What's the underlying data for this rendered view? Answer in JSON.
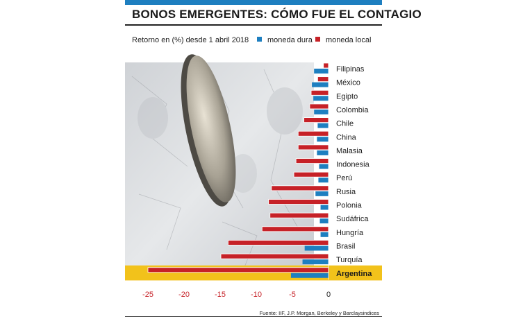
{
  "header": {
    "title": "BONOS EMERGENTES: CÓMO FUE EL CONTAGIO",
    "subtitle": "Retorno en (%) desde 1 abril 2018"
  },
  "legend": [
    {
      "name": "moneda dura",
      "color": "#1e7fc0"
    },
    {
      "name": "moneda local",
      "color": "#c62127"
    }
  ],
  "colors": {
    "accent_bar": "#1e7fc0",
    "highlight": "#f2c21b",
    "hard": "#1e7fc0",
    "local": "#c62127",
    "tick_label": "#c62127"
  },
  "chart_data": {
    "type": "bar",
    "orientation": "horizontal",
    "categories": [
      "Filipinas",
      "México",
      "Egipto",
      "Colombia",
      "Chile",
      "China",
      "Malasia",
      "Indonesia",
      "Perú",
      "Rusia",
      "Polonia",
      "Sudáfrica",
      "Hungría",
      "Brasil",
      "Turquía",
      "Argentina"
    ],
    "series": [
      {
        "name": "moneda dura",
        "values": [
          -2.0,
          -2.3,
          -2.1,
          -2.0,
          -1.5,
          -1.6,
          -1.6,
          -1.3,
          -1.4,
          -1.8,
          -1.1,
          -1.2,
          -1.1,
          -3.3,
          -3.6,
          -5.2
        ]
      },
      {
        "name": "moneda local",
        "values": [
          -0.7,
          -1.5,
          -2.4,
          -2.6,
          -3.4,
          -4.2,
          -4.2,
          -4.5,
          -4.8,
          -7.9,
          -8.3,
          -8.1,
          -9.2,
          -13.9,
          -14.9,
          -25.0
        ]
      }
    ],
    "xlim": [
      -25,
      0
    ],
    "xticks": [
      -25,
      -20,
      -15,
      -10,
      -5,
      0
    ],
    "xtick_labels": [
      "-25",
      "-20",
      "-15",
      "-10",
      "-5",
      "0"
    ],
    "highlight_category": "Argentina",
    "grid": false,
    "legend_position": "top"
  },
  "source": "Fuente: IIF, J.P. Morgan, Berkeley y Barclaysindices"
}
